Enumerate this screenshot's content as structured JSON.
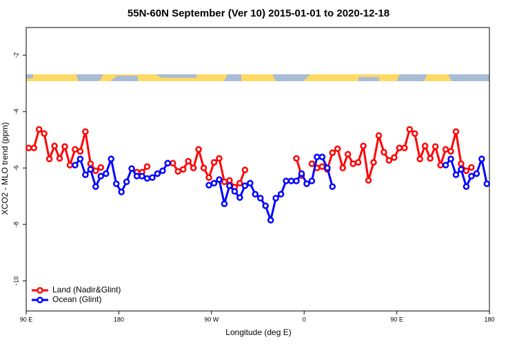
{
  "chart_data": {
    "type": "line",
    "title": "55N-60N September (Ver 10)   2015-01-01 to 2020-12-18",
    "x_label": "Longitude (deg E)",
    "y_label": "XCO2 - MLO trend (ppm)",
    "x": [
      92.5,
      97.5,
      102.5,
      107.5,
      112.5,
      117.5,
      122.5,
      127.5,
      132.5,
      137.5,
      142.5,
      147.5,
      152.5,
      157.5,
      162.5,
      167.5,
      172.5,
      177.5,
      182.5,
      187.5,
      192.5,
      197.5,
      202.5,
      207.5,
      212.5,
      217.5,
      222.5,
      227.5,
      232.5,
      237.5,
      242.5,
      247.5,
      252.5,
      257.5,
      262.5,
      267.5,
      272.5,
      277.5,
      282.5,
      287.5,
      292.5,
      297.5,
      302.5,
      307.5,
      312.5,
      317.5,
      322.5,
      327.5,
      332.5,
      337.5,
      342.5,
      347.5,
      352.5,
      357.5,
      362.5,
      367.5,
      372.5,
      377.5,
      382.5,
      387.5,
      392.5,
      397.5,
      402.5,
      407.5,
      412.5,
      417.5,
      422.5,
      427.5,
      432.5,
      437.5,
      442.5,
      447.5,
      452.5,
      457.5,
      462.5,
      467.5,
      472.5,
      477.5,
      482.5,
      487.5,
      492.5,
      497.5,
      502.5,
      507.5,
      512.5,
      517.5,
      522.5,
      527.5,
      532.5,
      537.5
    ],
    "series": [
      {
        "name": "Land (Nadir&Glint)",
        "color": "#ff0000",
        "values": [
          -5.29,
          -5.29,
          -4.63,
          -4.78,
          -5.68,
          -5.22,
          -5.66,
          -5.24,
          -5.9,
          -5.34,
          -5.41,
          -4.71,
          -5.85,
          -6.1,
          -5.98,
          null,
          null,
          null,
          null,
          null,
          null,
          -6.15,
          -6.15,
          -5.95,
          null,
          null,
          null,
          -5.83,
          -5.83,
          -6.12,
          -6.05,
          -5.76,
          -6.0,
          -5.34,
          -6.0,
          -6.34,
          -5.8,
          -5.66,
          -6.49,
          -6.44,
          -6.68,
          -6.54,
          -6.07,
          null,
          null,
          null,
          null,
          null,
          null,
          null,
          null,
          null,
          -5.66,
          -6.27,
          null,
          -5.85,
          -6.0,
          -5.95,
          -6.05,
          -5.46,
          -5.32,
          -6.0,
          -5.51,
          -5.85,
          -5.8,
          -5.22,
          -6.44,
          -5.8,
          -4.85,
          -5.44,
          -5.73,
          -5.63,
          -5.29,
          -5.29,
          -4.63,
          -4.78,
          -5.68,
          -5.22,
          -5.66,
          -5.24,
          -5.9,
          -5.34,
          -5.41,
          -4.71,
          -5.85,
          -6.1,
          -5.98,
          null,
          null,
          null
        ]
      },
      {
        "name": "Ocean (Glint)",
        "color": "#0000ff",
        "values": [
          null,
          null,
          null,
          null,
          null,
          null,
          null,
          null,
          null,
          -5.9,
          -5.68,
          -6.24,
          -6.05,
          -6.66,
          -6.29,
          -6.2,
          -5.68,
          -6.56,
          -6.85,
          -6.49,
          -6.02,
          -6.29,
          -6.29,
          -6.37,
          -6.34,
          -6.2,
          -6.1,
          -5.83,
          null,
          null,
          null,
          null,
          null,
          null,
          null,
          -6.61,
          -6.54,
          -6.41,
          -7.27,
          -6.63,
          -6.83,
          -7.05,
          -6.63,
          -6.54,
          -6.93,
          -7.07,
          -7.34,
          -7.85,
          -7.07,
          -6.93,
          -6.46,
          -6.46,
          -6.46,
          -6.2,
          -6.56,
          -6.46,
          -5.61,
          -5.61,
          -6.0,
          -6.66,
          null,
          null,
          null,
          null,
          null,
          null,
          null,
          null,
          null,
          null,
          null,
          null,
          null,
          null,
          null,
          null,
          null,
          null,
          null,
          null,
          null,
          -5.9,
          -5.68,
          -6.24,
          -6.05,
          -6.66,
          -6.29,
          -6.2,
          -5.68,
          -6.56
        ]
      }
    ],
    "xlim": [
      90,
      540
    ],
    "xticks": [
      {
        "value": 90,
        "label": "90 E"
      },
      180,
      {
        "value": 270,
        "label": "90 W"
      },
      {
        "value": 360,
        "label": "0"
      },
      {
        "value": 450,
        "label": "90 E"
      },
      {
        "value": 540,
        "label": "180"
      }
    ],
    "ylim": [
      -11.07,
      -1.02
    ],
    "yticks": [
      -2,
      -4,
      -6,
      -8,
      -10
    ],
    "legend": "bottom-left"
  }
}
